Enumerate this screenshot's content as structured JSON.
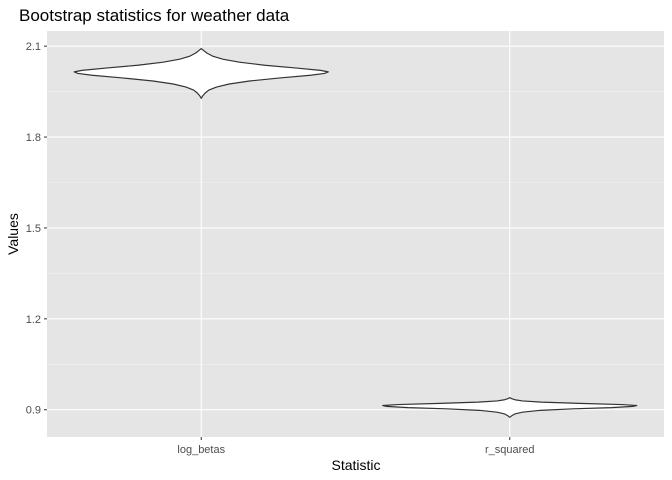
{
  "chart_data": {
    "type": "violin",
    "title": "Bootstrap statistics for weather data",
    "xlabel": "Statistic",
    "ylabel": "Values",
    "categories": [
      "log_betas",
      "r_squared"
    ],
    "ylim": [
      0.81,
      2.15
    ],
    "y_ticks": [
      0.9,
      1.2,
      1.5,
      1.8,
      2.1
    ],
    "y_tick_labels": [
      "0.9",
      "1.2",
      "1.5",
      "1.8",
      "2.1"
    ],
    "grid": true,
    "legend": "none",
    "colors": {
      "panel_background": "#e5e5e5",
      "grid_major": "#ffffff",
      "grid_minor": "#f2f2f2",
      "violin_outline": "#333333",
      "violin_fill": "#ffffff"
    },
    "violins": [
      {
        "category": "log_betas",
        "min": 1.928,
        "max": 2.092,
        "profile": [
          [
            1.928,
            0.0
          ],
          [
            1.935,
            0.01
          ],
          [
            1.945,
            0.03
          ],
          [
            1.955,
            0.06
          ],
          [
            1.965,
            0.12
          ],
          [
            1.975,
            0.22
          ],
          [
            1.985,
            0.38
          ],
          [
            1.995,
            0.62
          ],
          [
            2.004,
            0.86
          ],
          [
            2.01,
            0.97
          ],
          [
            2.015,
            1.0
          ],
          [
            2.02,
            0.94
          ],
          [
            2.028,
            0.74
          ],
          [
            2.037,
            0.5
          ],
          [
            2.047,
            0.3
          ],
          [
            2.057,
            0.17
          ],
          [
            2.067,
            0.09
          ],
          [
            2.077,
            0.045
          ],
          [
            2.085,
            0.02
          ],
          [
            2.092,
            0.0
          ]
        ]
      },
      {
        "category": "r_squared",
        "min": 0.875,
        "max": 0.94,
        "profile": [
          [
            0.875,
            0.0
          ],
          [
            0.88,
            0.015
          ],
          [
            0.886,
            0.04
          ],
          [
            0.892,
            0.1
          ],
          [
            0.898,
            0.24
          ],
          [
            0.903,
            0.5
          ],
          [
            0.907,
            0.8
          ],
          [
            0.911,
            0.97
          ],
          [
            0.914,
            1.0
          ],
          [
            0.917,
            0.88
          ],
          [
            0.921,
            0.55
          ],
          [
            0.925,
            0.25
          ],
          [
            0.929,
            0.1
          ],
          [
            0.933,
            0.04
          ],
          [
            0.937,
            0.012
          ],
          [
            0.94,
            0.0
          ]
        ]
      }
    ]
  }
}
